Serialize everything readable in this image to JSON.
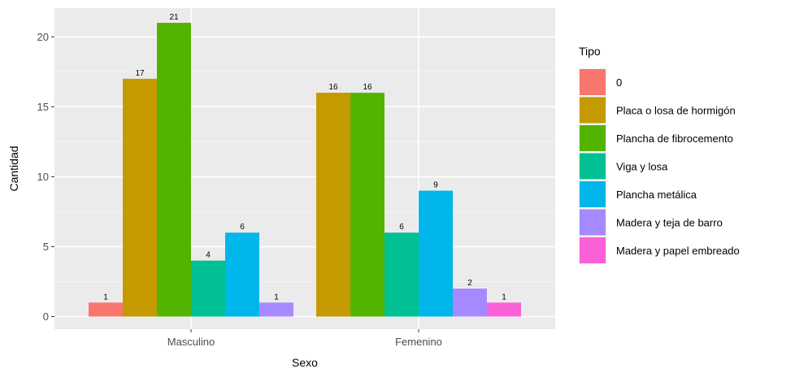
{
  "chart_data": {
    "type": "bar",
    "xlabel": "Sexo",
    "ylabel": "Cantidad",
    "ylim": [
      -0.9,
      22.05
    ],
    "yticks": [
      0,
      5,
      10,
      15,
      20
    ],
    "categories": [
      "Masculino",
      "Femenino"
    ],
    "grid": true,
    "legend": {
      "title": "Tipo",
      "position": "right"
    },
    "series": [
      {
        "name": "0",
        "color": "#F8766D",
        "values": [
          1,
          null
        ]
      },
      {
        "name": "Placa o losa de hormigón",
        "color": "#C49A00",
        "values": [
          17,
          16
        ]
      },
      {
        "name": "Plancha de fibrocemento",
        "color": "#53B400",
        "values": [
          21,
          16
        ]
      },
      {
        "name": "Viga y losa",
        "color": "#00C094",
        "values": [
          4,
          6
        ]
      },
      {
        "name": "Plancha metálica",
        "color": "#00B6EB",
        "values": [
          6,
          9
        ]
      },
      {
        "name": "Madera y teja de barro",
        "color": "#A58AFF",
        "values": [
          1,
          2
        ]
      },
      {
        "name": "Madera y papel embreado",
        "color": "#FB61D7",
        "values": [
          null,
          1
        ]
      }
    ]
  }
}
